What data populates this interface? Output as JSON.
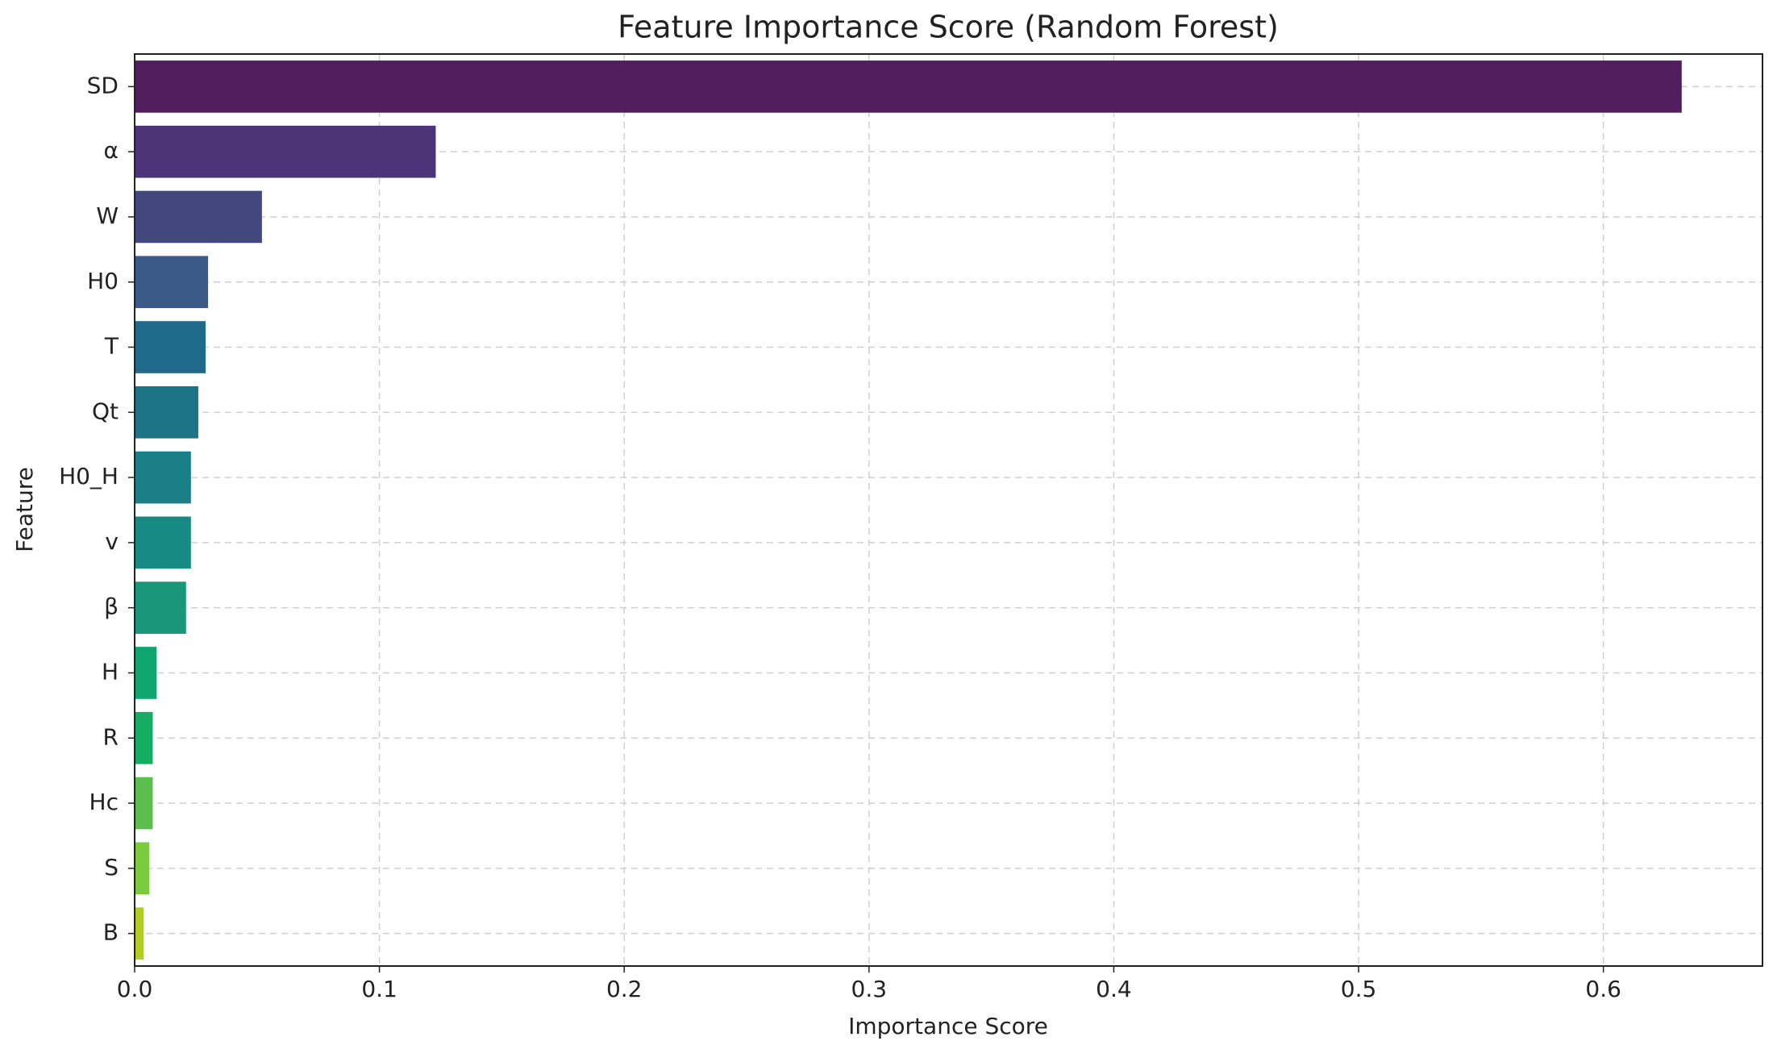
{
  "chart_data": {
    "type": "barh",
    "title": "Feature Importance Score (Random Forest)",
    "xlabel": "Importance Score",
    "ylabel": "Feature",
    "categories": [
      "SD",
      "α",
      "W",
      "H0",
      "T",
      "Qt",
      "H0_H",
      "v",
      "β",
      "H",
      "R",
      "Hc",
      "S",
      "B"
    ],
    "values": [
      0.632,
      0.123,
      0.052,
      0.03,
      0.029,
      0.026,
      0.023,
      0.023,
      0.021,
      0.009,
      0.0074,
      0.0074,
      0.006,
      0.0037
    ],
    "colors": [
      "#521e5e",
      "#4b3478",
      "#43487c",
      "#3a5a87",
      "#1f6a8b",
      "#1d7486",
      "#1a7f86",
      "#178a83",
      "#1a977a",
      "#0fa56f",
      "#14ad62",
      "#5bbe4f",
      "#7bc93d",
      "#b2cc22"
    ],
    "xlim": [
      0,
      0.665
    ],
    "xticks": [
      {
        "value": 0,
        "label": "0.0"
      },
      0.1,
      0.2,
      0.3,
      0.4,
      0.5,
      0.6
    ],
    "grid": true
  }
}
